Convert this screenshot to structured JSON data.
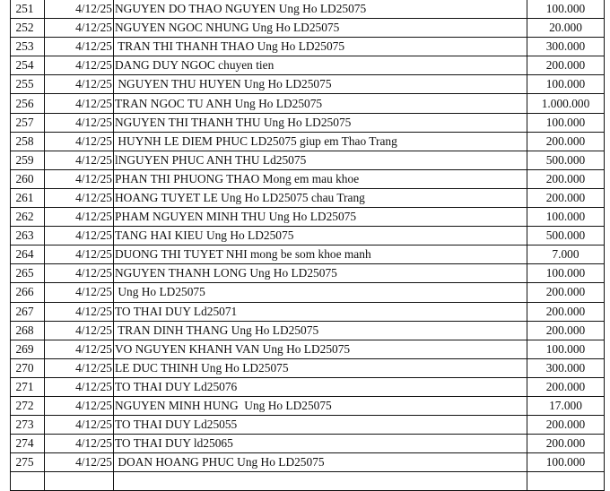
{
  "rows": [
    {
      "no": "251",
      "date": "4/12/25",
      "desc": "NGUYEN DO THAO NGUYEN Ung Ho LD25075",
      "amount": "100.000"
    },
    {
      "no": "252",
      "date": "4/12/25",
      "desc": "NGUYEN NGOC NHUNG Ung Ho LD25075",
      "amount": "20.000"
    },
    {
      "no": "253",
      "date": "4/12/25",
      "desc": " TRAN THI THANH THAO Ung Ho LD25075",
      "amount": "300.000"
    },
    {
      "no": "254",
      "date": "4/12/25",
      "desc": "DANG DUY NGOC chuyen tien",
      "amount": "200.000"
    },
    {
      "no": "255",
      "date": "4/12/25",
      "desc": " NGUYEN THU HUYEN Ung Ho LD25075",
      "amount": "100.000"
    },
    {
      "no": "256",
      "date": "4/12/25",
      "desc": "TRAN NGOC TU ANH Ung Ho LD25075",
      "amount": "1.000.000"
    },
    {
      "no": "257",
      "date": "4/12/25",
      "desc": "NGUYEN THI THANH THU Ung Ho LD25075",
      "amount": "100.000"
    },
    {
      "no": "258",
      "date": "4/12/25",
      "desc": " HUYNH LE DIEM PHUC LD25075 giup em Thao Trang",
      "amount": "200.000"
    },
    {
      "no": "259",
      "date": "4/12/25",
      "desc": "lNGUYEN PHUC ANH THU Ld25075",
      "amount": "500.000"
    },
    {
      "no": "260",
      "date": "4/12/25",
      "desc": "PHAN THI PHUONG THAO Mong em mau khoe",
      "amount": "200.000"
    },
    {
      "no": "261",
      "date": "4/12/25",
      "desc": "HOANG TUYET LE Ung Ho LD25075 chau Trang",
      "amount": "200.000"
    },
    {
      "no": "262",
      "date": "4/12/25",
      "desc": "PHAM NGUYEN MINH THU Ung Ho LD25075",
      "amount": "100.000"
    },
    {
      "no": "263",
      "date": "4/12/25",
      "desc": "TANG HAI KIEU Ung Ho LD25075",
      "amount": "500.000"
    },
    {
      "no": "264",
      "date": "4/12/25",
      "desc": "DUONG THI TUYET NHI mong be som khoe manh",
      "amount": "7.000"
    },
    {
      "no": "265",
      "date": "4/12/25",
      "desc": "NGUYEN THANH LONG Ung Ho LD25075",
      "amount": "100.000"
    },
    {
      "no": "266",
      "date": "4/12/25",
      "desc": " Ung Ho LD25075",
      "amount": "200.000"
    },
    {
      "no": "267",
      "date": "4/12/25",
      "desc": "TO THAI DUY Ld25071",
      "amount": "200.000"
    },
    {
      "no": "268",
      "date": "4/12/25",
      "desc": " TRAN DINH THANG Ung Ho LD25075",
      "amount": "200.000"
    },
    {
      "no": "269",
      "date": "4/12/25",
      "desc": "VO NGUYEN KHANH VAN Ung Ho LD25075",
      "amount": "100.000"
    },
    {
      "no": "270",
      "date": "4/12/25",
      "desc": "LE DUC THINH Ung Ho LD25075",
      "amount": "300.000"
    },
    {
      "no": "271",
      "date": "4/12/25",
      "desc": "TO THAI DUY Ld25076",
      "amount": "200.000"
    },
    {
      "no": "272",
      "date": "4/12/25",
      "desc": "NGUYEN MINH HUNG  Ung Ho LD25075",
      "amount": "17.000"
    },
    {
      "no": "273",
      "date": "4/12/25",
      "desc": "TO THAI DUY Ld25055",
      "amount": "200.000"
    },
    {
      "no": "274",
      "date": "4/12/25",
      "desc": "TO THAI DUY ld25065",
      "amount": "200.000"
    },
    {
      "no": "275",
      "date": "4/12/25",
      "desc": " DOAN HOANG PHUC Ung Ho LD25075",
      "amount": "100.000"
    }
  ]
}
